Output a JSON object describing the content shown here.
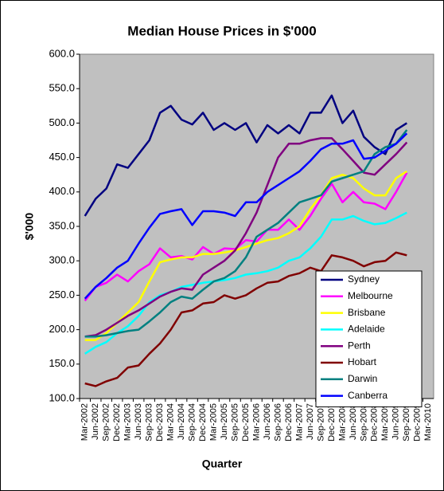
{
  "chart_data": {
    "type": "line",
    "title": "Median House Prices in $'000",
    "x_label": "Quarter",
    "y_label": "$'000",
    "categories": [
      "Mar-2002",
      "Jun-2002",
      "Sep-2002",
      "Dec-2002",
      "Mar-2003",
      "Jun-2003",
      "Sep-2003",
      "Dec-2003",
      "Mar-2004",
      "Jun-2004",
      "Sep-2004",
      "Dec-2004",
      "Mar-2005",
      "Jun-2005",
      "Sep-2005",
      "Dec-2005",
      "Mar-2006",
      "Jun-2006",
      "Sep-2006",
      "Dec-2006",
      "Mar-2007",
      "Jun-2007",
      "Sep-2007",
      "Dec-2007",
      "Mar-2008",
      "Jun-2008",
      "Sep-2008",
      "Dec-2008",
      "Mar-2009",
      "Jun-2009",
      "Sep-2009",
      "Dec-2009",
      "Mar-2010"
    ],
    "series": [
      {
        "name": "Sydney",
        "color": "#000080",
        "values": [
          365,
          390,
          405,
          440,
          435,
          455,
          475,
          515,
          525,
          505,
          498,
          515,
          490,
          500,
          490,
          500,
          472,
          497,
          485,
          497,
          485,
          515,
          515,
          540,
          500,
          518,
          480,
          465,
          455,
          490,
          500,
          null,
          null
        ]
      },
      {
        "name": "Melbourne",
        "color": "#ff00ff",
        "values": [
          242,
          262,
          268,
          280,
          270,
          285,
          295,
          318,
          305,
          307,
          302,
          320,
          310,
          318,
          317,
          330,
          328,
          345,
          345,
          360,
          345,
          365,
          390,
          412,
          385,
          400,
          385,
          383,
          375,
          400,
          428,
          null,
          null
        ]
      },
      {
        "name": "Brisbane",
        "color": "#ffff00",
        "values": [
          185,
          185,
          195,
          210,
          225,
          240,
          270,
          298,
          302,
          305,
          305,
          310,
          310,
          312,
          315,
          320,
          325,
          330,
          333,
          340,
          350,
          375,
          395,
          420,
          425,
          420,
          405,
          395,
          395,
          420,
          430,
          null,
          null
        ]
      },
      {
        "name": "Adelaide",
        "color": "#00ffff",
        "values": [
          165,
          175,
          182,
          195,
          205,
          220,
          240,
          250,
          255,
          262,
          265,
          268,
          270,
          272,
          275,
          280,
          282,
          285,
          290,
          300,
          305,
          318,
          335,
          360,
          360,
          365,
          358,
          353,
          355,
          362,
          370,
          null,
          null
        ]
      },
      {
        "name": "Perth",
        "color": "#800080",
        "values": [
          190,
          192,
          200,
          210,
          220,
          228,
          238,
          248,
          255,
          260,
          258,
          280,
          290,
          300,
          315,
          340,
          370,
          410,
          450,
          470,
          470,
          475,
          478,
          478,
          462,
          445,
          428,
          425,
          440,
          455,
          472,
          null,
          null
        ]
      },
      {
        "name": "Hobart",
        "color": "#800000",
        "values": [
          122,
          118,
          125,
          130,
          145,
          148,
          165,
          180,
          200,
          225,
          228,
          238,
          240,
          250,
          245,
          250,
          260,
          268,
          270,
          278,
          282,
          290,
          285,
          308,
          305,
          300,
          292,
          298,
          300,
          312,
          308,
          null,
          null
        ]
      },
      {
        "name": "Darwin",
        "color": "#008080",
        "values": [
          190,
          190,
          192,
          195,
          198,
          200,
          212,
          225,
          240,
          248,
          245,
          258,
          270,
          275,
          285,
          305,
          335,
          345,
          355,
          370,
          385,
          390,
          395,
          415,
          420,
          425,
          430,
          455,
          465,
          470,
          490,
          null,
          null
        ]
      },
      {
        "name": "Canberra",
        "color": "#0000ff",
        "values": [
          245,
          262,
          275,
          290,
          300,
          325,
          348,
          368,
          372,
          375,
          352,
          372,
          372,
          370,
          365,
          385,
          385,
          400,
          410,
          420,
          430,
          445,
          462,
          470,
          470,
          475,
          448,
          450,
          460,
          470,
          485,
          null,
          null
        ]
      }
    ],
    "ylim": [
      100,
      600
    ],
    "yticks": [
      {
        "value": 100,
        "label": "100.0"
      },
      {
        "value": 150,
        "label": "150.0"
      },
      {
        "value": 200,
        "label": "200.0"
      },
      {
        "value": 250,
        "label": "250.0"
      },
      {
        "value": 300,
        "label": "300.0"
      },
      {
        "value": 350,
        "label": "350.0"
      },
      {
        "value": 400,
        "label": "400.0"
      },
      {
        "value": 450,
        "label": "450.0"
      },
      {
        "value": 500,
        "label": "500.0"
      },
      {
        "value": 550,
        "label": "550.0"
      },
      {
        "value": 600,
        "label": "600.0"
      }
    ],
    "grid": false,
    "plot_background": "#c0c0c0",
    "legend": "lower right"
  }
}
